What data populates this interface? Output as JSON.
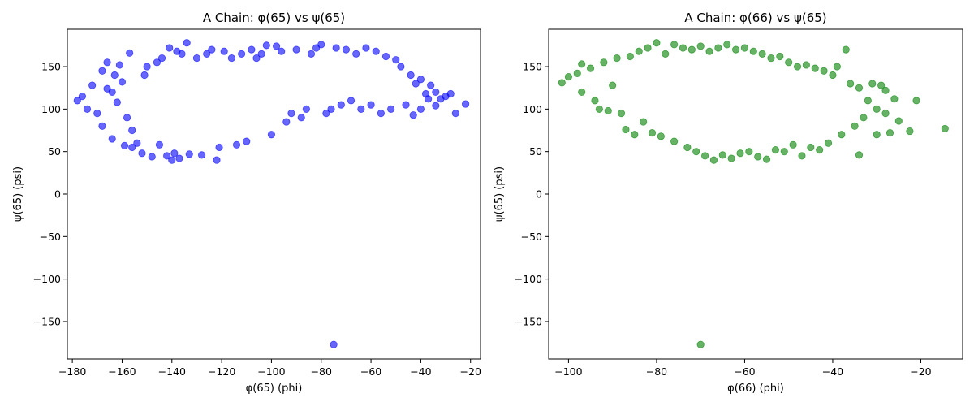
{
  "chart_data": [
    {
      "type": "scatter",
      "title": "A Chain: φ(65) vs ψ(65)",
      "xlabel": "φ(65) (phi)",
      "ylabel": "ψ(65) (psi)",
      "xlim": [
        -182,
        -16
      ],
      "ylim": [
        -194,
        194
      ],
      "xticks": [
        -180,
        -160,
        -140,
        -120,
        -100,
        -80,
        -60,
        -40,
        -20
      ],
      "yticks": [
        -150,
        -100,
        -50,
        0,
        50,
        100,
        150
      ],
      "xtick_labels": [
        "−180",
        "−160",
        "−140",
        "−120",
        "−100",
        "−80",
        "−60",
        "−40",
        "−20"
      ],
      "ytick_labels": [
        "−150",
        "−100",
        "−50",
        "0",
        "50",
        "100",
        "150"
      ],
      "grid": false,
      "color": "#0000ff",
      "alpha": 0.6,
      "series": [
        {
          "values": [
            [
              -178,
              110
            ],
            [
              -176,
              115
            ],
            [
              -174,
              100
            ],
            [
              -172,
              128
            ],
            [
              -170,
              95
            ],
            [
              -168,
              80
            ],
            [
              -168,
              145
            ],
            [
              -166,
              124
            ],
            [
              -166,
              155
            ],
            [
              -164,
              120
            ],
            [
              -164,
              65
            ],
            [
              -163,
              140
            ],
            [
              -162,
              108
            ],
            [
              -161,
              152
            ],
            [
              -160,
              132
            ],
            [
              -159,
              57
            ],
            [
              -158,
              90
            ],
            [
              -157,
              166
            ],
            [
              -156,
              55
            ],
            [
              -156,
              75
            ],
            [
              -154,
              60
            ],
            [
              -152,
              48
            ],
            [
              -151,
              140
            ],
            [
              -150,
              150
            ],
            [
              -148,
              44
            ],
            [
              -146,
              155
            ],
            [
              -145,
              58
            ],
            [
              -144,
              160
            ],
            [
              -142,
              45
            ],
            [
              -141,
              172
            ],
            [
              -140,
              40
            ],
            [
              -139,
              48
            ],
            [
              -138,
              168
            ],
            [
              -137,
              42
            ],
            [
              -136,
              165
            ],
            [
              -134,
              178
            ],
            [
              -133,
              47
            ],
            [
              -130,
              160
            ],
            [
              -128,
              46
            ],
            [
              -126,
              165
            ],
            [
              -124,
              170
            ],
            [
              -122,
              40
            ],
            [
              -121,
              55
            ],
            [
              -119,
              168
            ],
            [
              -116,
              160
            ],
            [
              -114,
              58
            ],
            [
              -112,
              165
            ],
            [
              -110,
              62
            ],
            [
              -108,
              170
            ],
            [
              -106,
              160
            ],
            [
              -104,
              165
            ],
            [
              -102,
              175
            ],
            [
              -100,
              70
            ],
            [
              -98,
              174
            ],
            [
              -96,
              168
            ],
            [
              -94,
              85
            ],
            [
              -92,
              95
            ],
            [
              -90,
              170
            ],
            [
              -88,
              90
            ],
            [
              -86,
              100
            ],
            [
              -84,
              165
            ],
            [
              -82,
              172
            ],
            [
              -80,
              176
            ],
            [
              -78,
              95
            ],
            [
              -76,
              100
            ],
            [
              -74,
              172
            ],
            [
              -72,
              105
            ],
            [
              -70,
              170
            ],
            [
              -68,
              110
            ],
            [
              -66,
              165
            ],
            [
              -64,
              100
            ],
            [
              -62,
              172
            ],
            [
              -60,
              105
            ],
            [
              -58,
              168
            ],
            [
              -56,
              95
            ],
            [
              -54,
              162
            ],
            [
              -52,
              100
            ],
            [
              -50,
              158
            ],
            [
              -48,
              150
            ],
            [
              -46,
              105
            ],
            [
              -44,
              140
            ],
            [
              -43,
              93
            ],
            [
              -42,
              130
            ],
            [
              -40,
              135
            ],
            [
              -40,
              100
            ],
            [
              -38,
              118
            ],
            [
              -37,
              112
            ],
            [
              -36,
              128
            ],
            [
              -34,
              120
            ],
            [
              -34,
              104
            ],
            [
              -32,
              112
            ],
            [
              -30,
              115
            ],
            [
              -28,
              118
            ],
            [
              -26,
              95
            ],
            [
              -22,
              106
            ],
            [
              -75,
              -177
            ]
          ]
        }
      ]
    },
    {
      "type": "scatter",
      "title": "A Chain: φ(66) vs ψ(65)",
      "xlabel": "φ(66) (phi)",
      "ylabel": "ψ(65) (psi)",
      "xlim": [
        -104.5,
        -10.5
      ],
      "ylim": [
        -194,
        194
      ],
      "xticks": [
        -100,
        -80,
        -60,
        -40,
        -20
      ],
      "yticks": [
        -150,
        -100,
        -50,
        0,
        50,
        100,
        150
      ],
      "xtick_labels": [
        "−100",
        "−80",
        "−60",
        "−40",
        "−20"
      ],
      "ytick_labels": [
        "−150",
        "−100",
        "−50",
        "0",
        "50",
        "100",
        "150"
      ],
      "grid": false,
      "color": "#008000",
      "alpha": 0.6,
      "series": [
        {
          "values": [
            [
              -101.5,
              131
            ],
            [
              -100,
              138
            ],
            [
              -98,
              142
            ],
            [
              -97,
              153
            ],
            [
              -97,
              120
            ],
            [
              -95,
              148
            ],
            [
              -94,
              110
            ],
            [
              -93,
              100
            ],
            [
              -92,
              155
            ],
            [
              -91,
              98
            ],
            [
              -90,
              128
            ],
            [
              -89,
              160
            ],
            [
              -88,
              95
            ],
            [
              -87,
              76
            ],
            [
              -86,
              162
            ],
            [
              -85,
              70
            ],
            [
              -84,
              168
            ],
            [
              -83,
              85
            ],
            [
              -82,
              172
            ],
            [
              -81,
              72
            ],
            [
              -80,
              178
            ],
            [
              -79,
              68
            ],
            [
              -78,
              165
            ],
            [
              -76,
              176
            ],
            [
              -76,
              62
            ],
            [
              -74,
              172
            ],
            [
              -73,
              55
            ],
            [
              -72,
              170
            ],
            [
              -71,
              50
            ],
            [
              -70,
              174
            ],
            [
              -69,
              45
            ],
            [
              -68,
              168
            ],
            [
              -67,
              40
            ],
            [
              -66,
              172
            ],
            [
              -65,
              46
            ],
            [
              -64,
              176
            ],
            [
              -63,
              42
            ],
            [
              -62,
              170
            ],
            [
              -61,
              48
            ],
            [
              -60,
              172
            ],
            [
              -59,
              50
            ],
            [
              -58,
              168
            ],
            [
              -57,
              44
            ],
            [
              -56,
              165
            ],
            [
              -55,
              41
            ],
            [
              -54,
              160
            ],
            [
              -53,
              52
            ],
            [
              -52,
              162
            ],
            [
              -51,
              50
            ],
            [
              -50,
              155
            ],
            [
              -49,
              58
            ],
            [
              -48,
              150
            ],
            [
              -47,
              45
            ],
            [
              -46,
              152
            ],
            [
              -45,
              55
            ],
            [
              -44,
              148
            ],
            [
              -43,
              52
            ],
            [
              -42,
              145
            ],
            [
              -41,
              60
            ],
            [
              -40,
              140
            ],
            [
              -39,
              150
            ],
            [
              -38,
              70
            ],
            [
              -37,
              170
            ],
            [
              -36,
              130
            ],
            [
              -35,
              80
            ],
            [
              -34,
              125
            ],
            [
              -34,
              46
            ],
            [
              -33,
              90
            ],
            [
              -32,
              110
            ],
            [
              -31,
              130
            ],
            [
              -30,
              100
            ],
            [
              -30,
              70
            ],
            [
              -29,
              128
            ],
            [
              -28,
              95
            ],
            [
              -28,
              122
            ],
            [
              -27,
              72
            ],
            [
              -26,
              112
            ],
            [
              -25,
              86
            ],
            [
              -22.5,
              74
            ],
            [
              -21,
              110
            ],
            [
              -14.5,
              77
            ],
            [
              -70,
              -177
            ]
          ]
        }
      ]
    }
  ]
}
